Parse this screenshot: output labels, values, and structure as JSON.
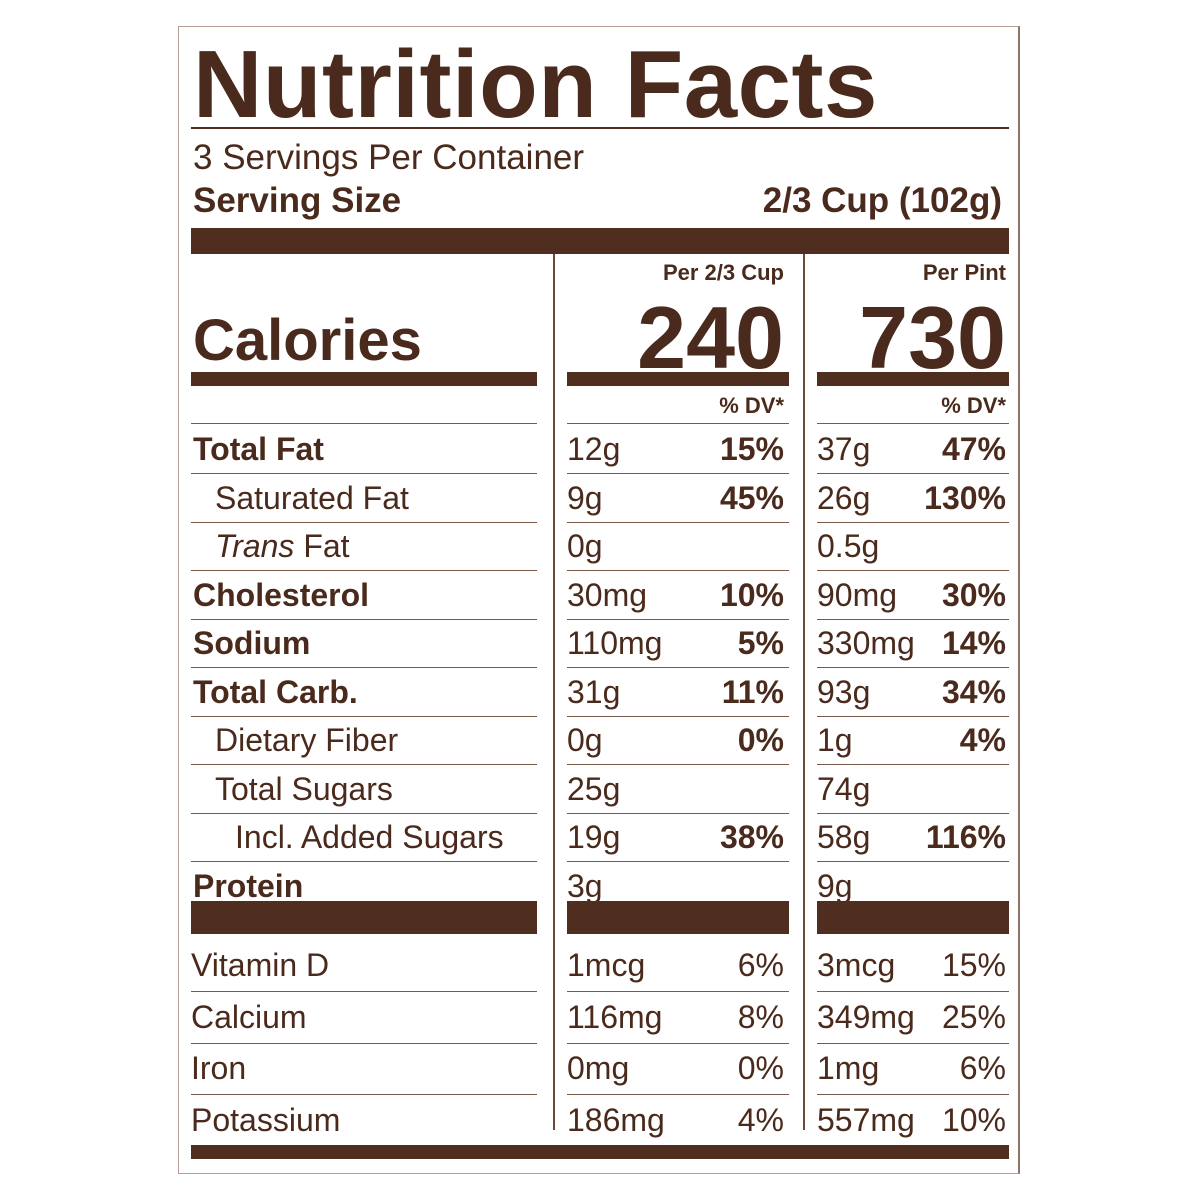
{
  "title": "Nutrition Facts",
  "servings_per_container": "3 Servings Per Container",
  "serving_size_label": "Serving Size",
  "serving_size_value": "2/3 Cup (102g)",
  "columns": [
    {
      "header": "Per 2/3 Cup",
      "calories": "240"
    },
    {
      "header": "Per Pint",
      "calories": "730"
    }
  ],
  "calories_label": "Calories",
  "dv_header": "% DV*",
  "nutrients": [
    {
      "label": "Total Fat",
      "bold": true,
      "indent": 0,
      "italic_prefix": "",
      "cols": [
        {
          "amount": "12g",
          "dv": "15%"
        },
        {
          "amount": "37g",
          "dv": "47%"
        }
      ]
    },
    {
      "label": "Saturated Fat",
      "bold": false,
      "indent": 1,
      "italic_prefix": "",
      "cols": [
        {
          "amount": "9g",
          "dv": "45%"
        },
        {
          "amount": "26g",
          "dv": "130%"
        }
      ]
    },
    {
      "label": " Fat",
      "bold": false,
      "indent": 1,
      "italic_prefix": "Trans",
      "cols": [
        {
          "amount": "0g",
          "dv": ""
        },
        {
          "amount": "0.5g",
          "dv": ""
        }
      ]
    },
    {
      "label": "Cholesterol",
      "bold": true,
      "indent": 0,
      "italic_prefix": "",
      "cols": [
        {
          "amount": "30mg",
          "dv": "10%"
        },
        {
          "amount": "90mg",
          "dv": "30%"
        }
      ]
    },
    {
      "label": "Sodium",
      "bold": true,
      "indent": 0,
      "italic_prefix": "",
      "cols": [
        {
          "amount": "110mg",
          "dv": "5%"
        },
        {
          "amount": "330mg",
          "dv": "14%"
        }
      ]
    },
    {
      "label": "Total Carb.",
      "bold": true,
      "indent": 0,
      "italic_prefix": "",
      "cols": [
        {
          "amount": "31g",
          "dv": "11%"
        },
        {
          "amount": "93g",
          "dv": "34%"
        }
      ]
    },
    {
      "label": "Dietary Fiber",
      "bold": false,
      "indent": 1,
      "italic_prefix": "",
      "cols": [
        {
          "amount": "0g",
          "dv": "0%"
        },
        {
          "amount": "1g",
          "dv": "4%"
        }
      ]
    },
    {
      "label": "Total Sugars",
      "bold": false,
      "indent": 1,
      "italic_prefix": "",
      "cols": [
        {
          "amount": "25g",
          "dv": ""
        },
        {
          "amount": "74g",
          "dv": ""
        }
      ]
    },
    {
      "label": "Incl. Added Sugars",
      "bold": false,
      "indent": 2,
      "italic_prefix": "",
      "cols": [
        {
          "amount": "19g",
          "dv": "38%"
        },
        {
          "amount": "58g",
          "dv": "116%"
        }
      ]
    },
    {
      "label": "Protein",
      "bold": true,
      "indent": 0,
      "italic_prefix": "",
      "cols": [
        {
          "amount": "3g",
          "dv": ""
        },
        {
          "amount": "9g",
          "dv": ""
        }
      ]
    }
  ],
  "micronutrients": [
    {
      "label": "Vitamin D",
      "cols": [
        {
          "amount": "1mcg",
          "dv": "6%"
        },
        {
          "amount": "3mcg",
          "dv": "15%"
        }
      ]
    },
    {
      "label": "Calcium",
      "cols": [
        {
          "amount": "116mg",
          "dv": "8%"
        },
        {
          "amount": "349mg",
          "dv": "25%"
        }
      ]
    },
    {
      "label": "Iron",
      "cols": [
        {
          "amount": "0mg",
          "dv": "0%"
        },
        {
          "amount": "1mg",
          "dv": "6%"
        }
      ]
    },
    {
      "label": "Potassium",
      "cols": [
        {
          "amount": "186mg",
          "dv": "4%"
        },
        {
          "amount": "557mg",
          "dv": "10%"
        }
      ]
    }
  ]
}
